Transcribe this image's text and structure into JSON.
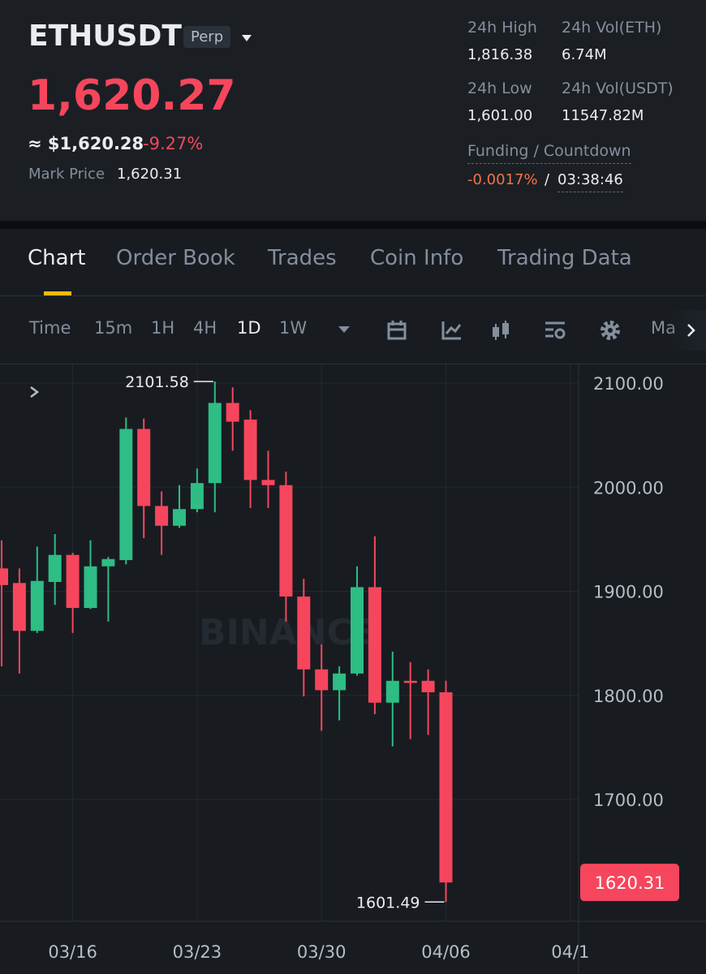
{
  "header": {
    "symbol": "ETHUSDT",
    "badge": "Perp",
    "price": "1,620.27",
    "approx": "≈ $1,620.28",
    "change": "-9.27%",
    "mark_label": "Mark Price",
    "mark_value": "1,620.31",
    "stats": [
      {
        "label": "24h High",
        "value": "1,816.38"
      },
      {
        "label": "24h Vol(ETH)",
        "value": "6.74M"
      },
      {
        "label": "24h Low",
        "value": "1,601.00"
      },
      {
        "label": "24h Vol(USDT)",
        "value": "11547.82M"
      }
    ],
    "funding_label": "Funding / Countdown",
    "funding_rate": "-0.0017%",
    "funding_sep": "/",
    "countdown": "03:38:46"
  },
  "tabs": [
    "Chart",
    "Order Book",
    "Trades",
    "Coin Info",
    "Trading Data"
  ],
  "toolbar": [
    "Time",
    "15m",
    "1H",
    "4H",
    "1D",
    "1W",
    "Ma"
  ],
  "watermark": "BINANCE",
  "chart_data": {
    "type": "candlestick",
    "categories": [
      "03/12",
      "03/13",
      "03/14",
      "03/15",
      "03/16",
      "03/17",
      "03/18",
      "03/19",
      "03/20",
      "03/21",
      "03/22",
      "03/23",
      "03/24",
      "03/25",
      "03/26",
      "03/27",
      "03/28",
      "03/29",
      "03/30",
      "03/31",
      "04/01",
      "04/02",
      "04/03",
      "04/04",
      "04/05",
      "04/06"
    ],
    "open": [
      1922,
      1908,
      1862,
      1909,
      1935,
      1884,
      1924,
      1930,
      2056,
      1982,
      1963,
      1979,
      2004,
      2081,
      2065,
      2007,
      2002,
      1895,
      1825,
      1805,
      1821,
      1904,
      1793,
      1814,
      1814,
      1803
    ],
    "high": [
      1949,
      1922,
      1943,
      1955,
      1937,
      1949,
      1933,
      2067,
      2066,
      1996,
      2002,
      2018,
      2101.58,
      2096,
      2074,
      2035,
      2015,
      1912,
      1849,
      1828,
      1924,
      1953,
      1842,
      1832,
      1825,
      1814
    ],
    "low": [
      1828,
      1821,
      1860,
      1887,
      1860,
      1883,
      1871,
      1926,
      1951,
      1935,
      1961,
      1976,
      1976,
      2035,
      1980,
      1980,
      1871,
      1799,
      1766,
      1776,
      1819,
      1782,
      1751,
      1758,
      1762,
      1601.49
    ],
    "close": [
      1906,
      1862,
      1910,
      1935,
      1884,
      1924,
      1931,
      2056,
      1982,
      1963,
      1979,
      2004,
      2081,
      2063,
      2007,
      2002,
      1895,
      1825,
      1805,
      1821,
      1904,
      1793,
      1814,
      1812,
      1803,
      1620.27
    ],
    "up_color": "#2ebd85",
    "down_color": "#f6465d",
    "ylim": [
      1583,
      2118
    ],
    "yticks": [
      {
        "value": 2100,
        "label": "2100.00"
      },
      {
        "value": 2000,
        "label": "2000.00"
      },
      {
        "value": 1900,
        "label": "1900.00"
      },
      {
        "value": 1800,
        "label": "1800.00"
      },
      {
        "value": 1700,
        "label": "1700.00"
      }
    ],
    "xticks": [
      "03/16",
      "03/23",
      "03/30",
      "04/06",
      "04/1"
    ],
    "price_tag": 1620.31,
    "grid": true
  }
}
